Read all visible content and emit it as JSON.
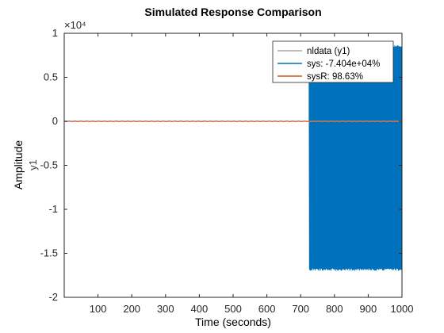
{
  "chart_data": {
    "type": "line",
    "title": "Simulated Response Comparison",
    "xlabel": "Time (seconds)",
    "ylabel": "Amplitude",
    "y_channel_label": "y1",
    "xlim": [
      0,
      1000
    ],
    "ylim": [
      -2,
      1
    ],
    "y_exponent_label": "×10⁴",
    "y_scale_factor": 10000,
    "x_ticks": [
      100,
      200,
      300,
      400,
      500,
      600,
      700,
      800,
      900,
      1000
    ],
    "y_ticks": [
      1,
      0.5,
      0,
      -0.5,
      -1,
      -1.5,
      -2
    ],
    "y_tick_labels": [
      "1",
      "0.5",
      "0",
      "-0.5",
      "-1",
      "-1.5",
      "-2"
    ],
    "grid": false,
    "legend_position": "top-right",
    "series": [
      {
        "name": "nldata (y1)",
        "color": "#a6a6a6",
        "description": "measured output, near zero throughout",
        "x": [
          0,
          1000
        ],
        "y": [
          0,
          0
        ]
      },
      {
        "name": "sys: -7.404e+04%",
        "color": "#0072bd",
        "description": "near zero until ~725 s, then oscillates between about -1.7 and 0.87 (x10^4)",
        "onset_x": 725,
        "envelope_max": 0.87,
        "envelope_min": -1.7,
        "x": [
          0,
          725,
          1000
        ],
        "y": [
          0,
          0,
          0
        ]
      },
      {
        "name": "sysR: 98.63%",
        "color": "#d95319",
        "description": "tracks measured data, near zero",
        "x": [
          0,
          1000
        ],
        "y": [
          0,
          0
        ]
      }
    ]
  }
}
